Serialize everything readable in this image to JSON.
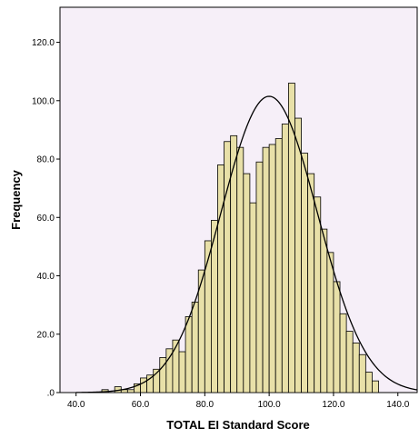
{
  "chart_data": {
    "type": "bar",
    "title": "",
    "xlabel": "TOTAL EI Standard Score",
    "ylabel": "Frequency",
    "xlim": [
      35,
      146
    ],
    "ylim": [
      0,
      120
    ],
    "xticks": [
      "40.0",
      "60.0",
      "80.0",
      "100.0",
      "120.0",
      "140.0"
    ],
    "xtick_values": [
      40,
      60,
      80,
      100,
      120,
      140
    ],
    "yticks": [
      ".0",
      "20.0",
      "40.0",
      "60.0",
      "80.0",
      "100.0",
      "120.0"
    ],
    "ytick_values": [
      0,
      20,
      40,
      60,
      80,
      100,
      120
    ],
    "bin_width": 2,
    "bins_start": [
      48,
      50,
      52,
      54,
      56,
      58,
      60,
      62,
      64,
      66,
      68,
      70,
      72,
      74,
      76,
      78,
      80,
      82,
      84,
      86,
      88,
      90,
      92,
      94,
      96,
      98,
      100,
      102,
      104,
      106,
      108,
      110,
      112,
      114,
      116,
      118,
      120,
      122,
      124,
      126,
      128,
      130,
      132
    ],
    "values": [
      1,
      0,
      2,
      1,
      1,
      3,
      5,
      6,
      8,
      12,
      15,
      18,
      14,
      26,
      31,
      42,
      52,
      59,
      78,
      86,
      88,
      84,
      75,
      65,
      79,
      84,
      85,
      87,
      92,
      106,
      94,
      82,
      75,
      67,
      56,
      48,
      38,
      27,
      21,
      17,
      13,
      7,
      4
    ],
    "normal_curve": {
      "mean": 100,
      "sd": 15,
      "peak": 101.5
    },
    "colors": {
      "bar_fill": "#e8e0a8",
      "bar_stroke": "#000000",
      "plot_bg": "#f6eff8",
      "curve": "#000000"
    },
    "grid": false
  }
}
